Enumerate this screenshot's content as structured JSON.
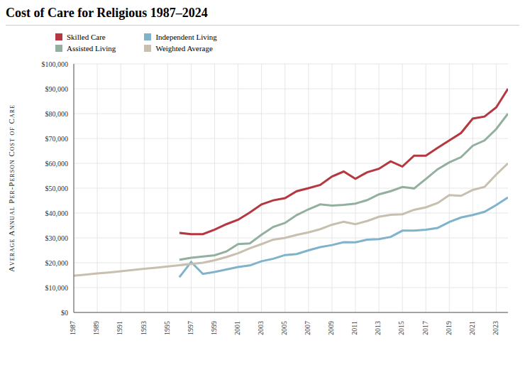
{
  "chart_data": {
    "type": "line",
    "title": "Cost of Care for Religious 1987–2024",
    "y_label": "Average Annual Per-Person Cost of Care",
    "x": [
      1987,
      1988,
      1989,
      1990,
      1991,
      1992,
      1993,
      1994,
      1995,
      1996,
      1997,
      1998,
      1999,
      2000,
      2001,
      2002,
      2003,
      2004,
      2005,
      2006,
      2007,
      2008,
      2009,
      2010,
      2011,
      2012,
      2013,
      2014,
      2015,
      2016,
      2017,
      2018,
      2019,
      2020,
      2021,
      2022,
      2023,
      2024
    ],
    "series": [
      {
        "name": "Skilled Care",
        "color": "#b5373f",
        "values": [
          null,
          null,
          null,
          null,
          null,
          null,
          null,
          null,
          null,
          32000,
          31500,
          31500,
          33300,
          35500,
          37300,
          40200,
          43500,
          45100,
          46000,
          48800,
          50000,
          51300,
          54700,
          56700,
          53800,
          56400,
          57800,
          60800,
          58700,
          63100,
          63100,
          66200,
          69200,
          72200,
          78000,
          78800,
          82500,
          90000
        ]
      },
      {
        "name": "Assisted Living",
        "color": "#93b09f",
        "values": [
          null,
          null,
          null,
          null,
          null,
          null,
          null,
          null,
          null,
          21200,
          22000,
          22500,
          23000,
          24500,
          27500,
          27800,
          31300,
          34400,
          36000,
          39200,
          41500,
          43500,
          43000,
          43300,
          43800,
          45200,
          47500,
          48800,
          50500,
          49900,
          53700,
          57600,
          60400,
          62500,
          67100,
          69200,
          73800,
          80000
        ]
      },
      {
        "name": "Independent Living",
        "color": "#7fb3cc",
        "values": [
          null,
          null,
          null,
          null,
          null,
          null,
          null,
          null,
          null,
          14200,
          20300,
          15500,
          16300,
          17300,
          18300,
          18900,
          20600,
          21600,
          23100,
          23500,
          25000,
          26300,
          27100,
          28300,
          28200,
          29300,
          29500,
          30400,
          32900,
          32900,
          33300,
          34000,
          36400,
          38200,
          39200,
          40500,
          43200,
          46300
        ]
      },
      {
        "name": "Weighted Average",
        "color": "#c8bfae",
        "values": [
          14800,
          15200,
          15700,
          16100,
          16600,
          17100,
          17600,
          18000,
          18500,
          19000,
          19500,
          20000,
          21000,
          22300,
          23800,
          25800,
          27500,
          29300,
          30000,
          31200,
          32200,
          33500,
          35300,
          36500,
          35500,
          36800,
          38500,
          39300,
          39500,
          41300,
          42300,
          44000,
          47200,
          46900,
          49300,
          50500,
          55500,
          60000
        ]
      }
    ],
    "xlim": [
      1987,
      2024
    ],
    "xticks": [
      1987,
      1989,
      1991,
      1993,
      1995,
      1997,
      1999,
      2001,
      2003,
      2005,
      2007,
      2009,
      2011,
      2013,
      2015,
      2017,
      2019,
      2021,
      2023
    ],
    "ylim": [
      0,
      100000
    ],
    "yticks": [
      {
        "value": 0,
        "label": "$0"
      },
      {
        "value": 10000,
        "label": "$10,000"
      },
      {
        "value": 20000,
        "label": "$20,000"
      },
      {
        "value": 30000,
        "label": "$30,000"
      },
      {
        "value": 40000,
        "label": "$40,000"
      },
      {
        "value": 50000,
        "label": "$50,000"
      },
      {
        "value": 60000,
        "label": "$60,000"
      },
      {
        "value": 70000,
        "label": "$70,000"
      },
      {
        "value": 80000,
        "label": "$80,000"
      },
      {
        "value": 90000,
        "label": "$90,000"
      },
      {
        "value": 100000,
        "label": "$100,000"
      }
    ],
    "grid": true,
    "legend": "top-left"
  }
}
